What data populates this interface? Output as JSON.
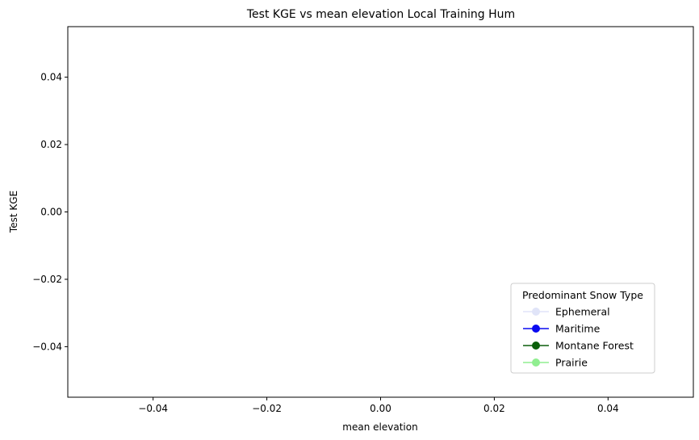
{
  "chart_data": {
    "type": "line",
    "title": "Test KGE vs mean elevation Local Training Hum",
    "xlabel": "mean elevation",
    "ylabel": "Test KGE",
    "xlim": [
      -0.055,
      0.055
    ],
    "ylim": [
      -0.055,
      0.055
    ],
    "xticks": [
      -0.04,
      -0.02,
      0.0,
      0.02,
      0.04
    ],
    "yticks": [
      -0.04,
      -0.02,
      0.0,
      0.02,
      0.04
    ],
    "xtick_labels": [
      "−0.04",
      "−0.02",
      "0.00",
      "0.02",
      "0.04"
    ],
    "ytick_labels": [
      "−0.04",
      "−0.02",
      "0.00",
      "0.02",
      "0.04"
    ],
    "grid": false,
    "legend": {
      "title": "Predominant Snow Type",
      "placement": "lower-right"
    },
    "series": [
      {
        "name": "Ephemeral",
        "color": "#e0e4f8",
        "x": [],
        "y": []
      },
      {
        "name": "Maritime",
        "color": "#0a0af0",
        "x": [],
        "y": []
      },
      {
        "name": "Montane Forest",
        "color": "#0b5f0b",
        "x": [],
        "y": []
      },
      {
        "name": "Prairie",
        "color": "#90ee90",
        "x": [],
        "y": []
      }
    ]
  }
}
